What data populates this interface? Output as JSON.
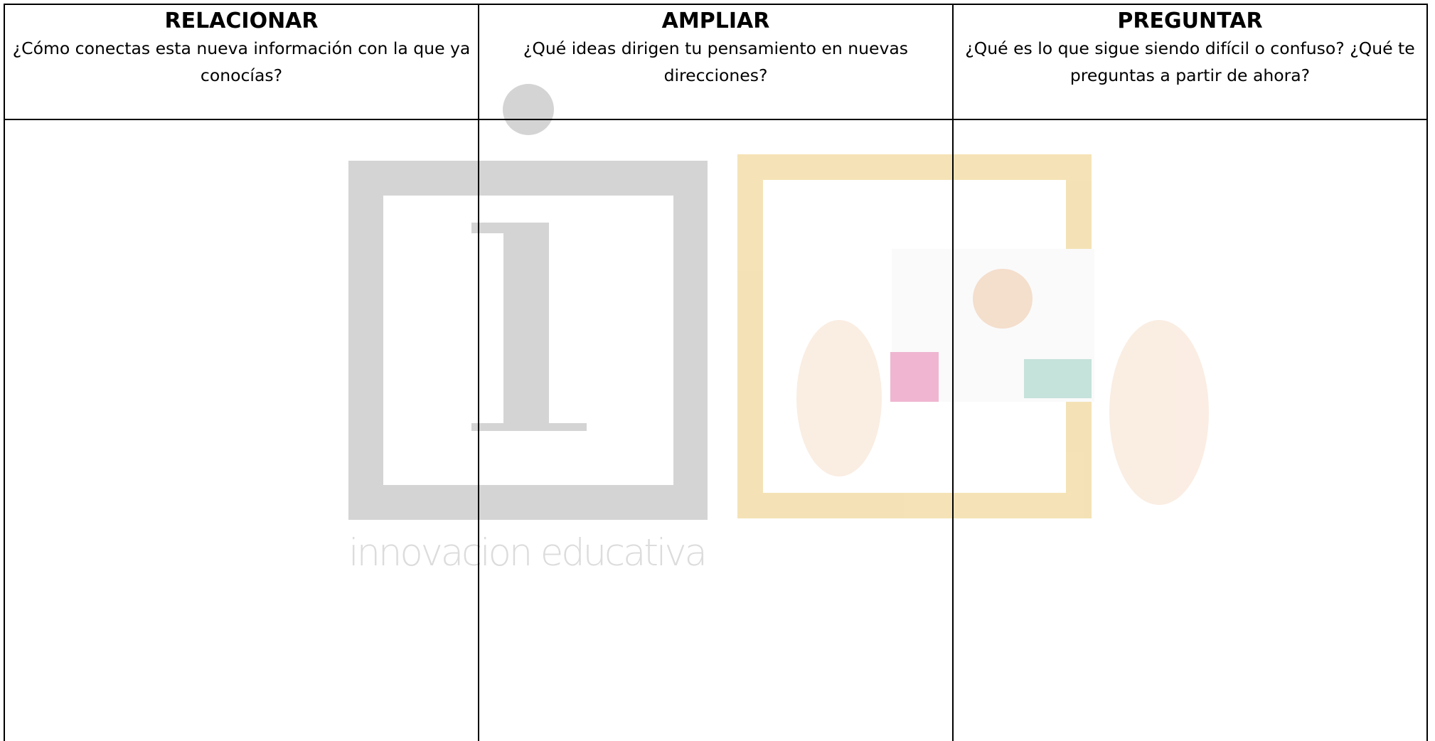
{
  "table": {
    "columns": [
      {
        "title": "RELACIONAR",
        "question": "¿Cómo conectas esta nueva información con la que ya conocías?"
      },
      {
        "title": "AMPLIAR",
        "question": "¿Qué ideas dirigen tu pensamiento en nuevas direcciones?"
      },
      {
        "title": "PREGUNTAR",
        "question": "¿Qué es lo que sigue siendo difícil o confuso? ¿Qué te preguntas a partir de ahora?"
      }
    ]
  },
  "watermark": "innovacion educativa"
}
